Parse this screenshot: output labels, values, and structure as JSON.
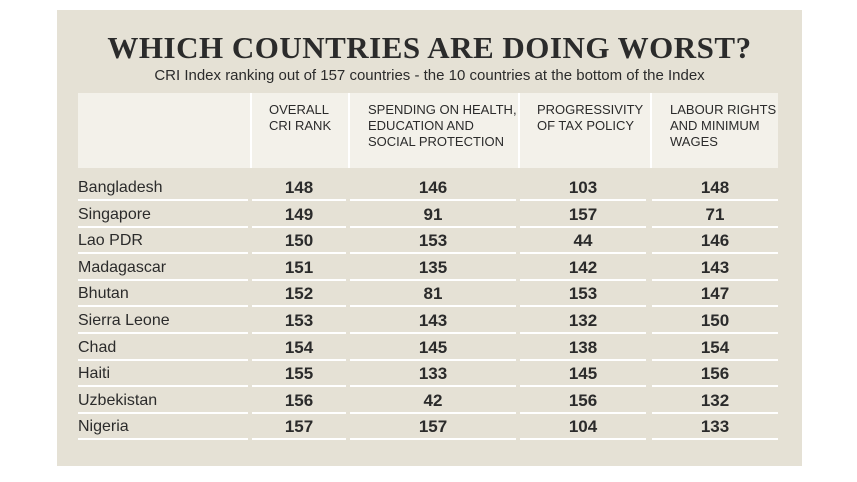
{
  "header": {
    "title": "WHICH COUNTRIES ARE DOING WORST?",
    "subtitle": "CRI Index ranking out of 157 countries - the 10 countries at the bottom of the Index"
  },
  "table": {
    "columns": [
      [
        "OVERALL",
        "CRI RANK"
      ],
      [
        "SPENDING ON HEALTH,",
        "EDUCATION AND",
        "SOCIAL PROTECTION"
      ],
      [
        "PROGRESSIVITY",
        "OF TAX POLICY"
      ],
      [
        "LABOUR RIGHTS",
        "AND MINIMUM",
        "WAGES"
      ]
    ],
    "rows": [
      [
        "Bangladesh",
        148,
        146,
        103,
        148
      ],
      [
        "Singapore",
        149,
        91,
        157,
        71
      ],
      [
        "Lao PDR",
        150,
        153,
        44,
        146
      ],
      [
        "Madagascar",
        151,
        135,
        142,
        143
      ],
      [
        "Bhutan",
        152,
        81,
        153,
        147
      ],
      [
        "Sierra Leone",
        153,
        143,
        132,
        150
      ],
      [
        "Chad",
        154,
        145,
        138,
        154
      ],
      [
        "Haiti",
        155,
        133,
        145,
        156
      ],
      [
        "Uzbekistan",
        156,
        42,
        156,
        132
      ],
      [
        "Nigeria",
        157,
        157,
        104,
        133
      ]
    ]
  }
}
